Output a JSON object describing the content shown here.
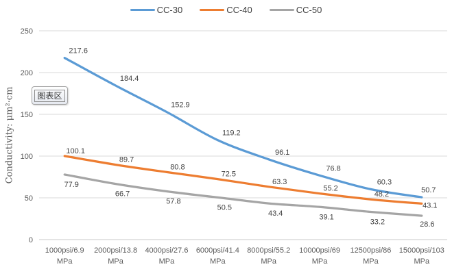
{
  "tooltip": {
    "label": "图表区"
  },
  "chart_data": {
    "type": "line",
    "title": "",
    "categories": [
      "1000psi/6.9",
      "2000psi/13.8",
      "4000psi/27.6",
      "6000psi/41.4",
      "8000psi/55.2",
      "10000psi/69",
      "12500psi/86",
      "15000psi/103"
    ],
    "category_unit": "MPa",
    "series": [
      {
        "name": "CC-30",
        "color": "#5B9BD5",
        "label_position": "above",
        "values": [
          217.6,
          184.4,
          152.9,
          119.2,
          96.1,
          76.8,
          60.3,
          50.7
        ]
      },
      {
        "name": "CC-40",
        "color": "#ED7D31",
        "label_position": "above",
        "values": [
          100.1,
          89.7,
          80.8,
          72.5,
          63.3,
          55.2,
          48.2,
          43.1
        ]
      },
      {
        "name": "CC-50",
        "color": "#A5A5A5",
        "label_position": "below",
        "values": [
          77.9,
          66.7,
          57.8,
          50.5,
          43.4,
          39.1,
          33.2,
          28.6
        ]
      }
    ],
    "xlabel": "",
    "ylabel": "Conductivity: μm²·cm",
    "ylim": [
      0,
      250
    ],
    "yticks": [
      0,
      50,
      100,
      150,
      200,
      250
    ],
    "grid": true,
    "legend_position": "top",
    "smooth_lines": true,
    "colors": {
      "gridline": "#D9D9D9",
      "axis_line": "#C9C9C9",
      "tick_text": "#595959",
      "data_label": "#404040",
      "legend_text": "#404040"
    }
  }
}
